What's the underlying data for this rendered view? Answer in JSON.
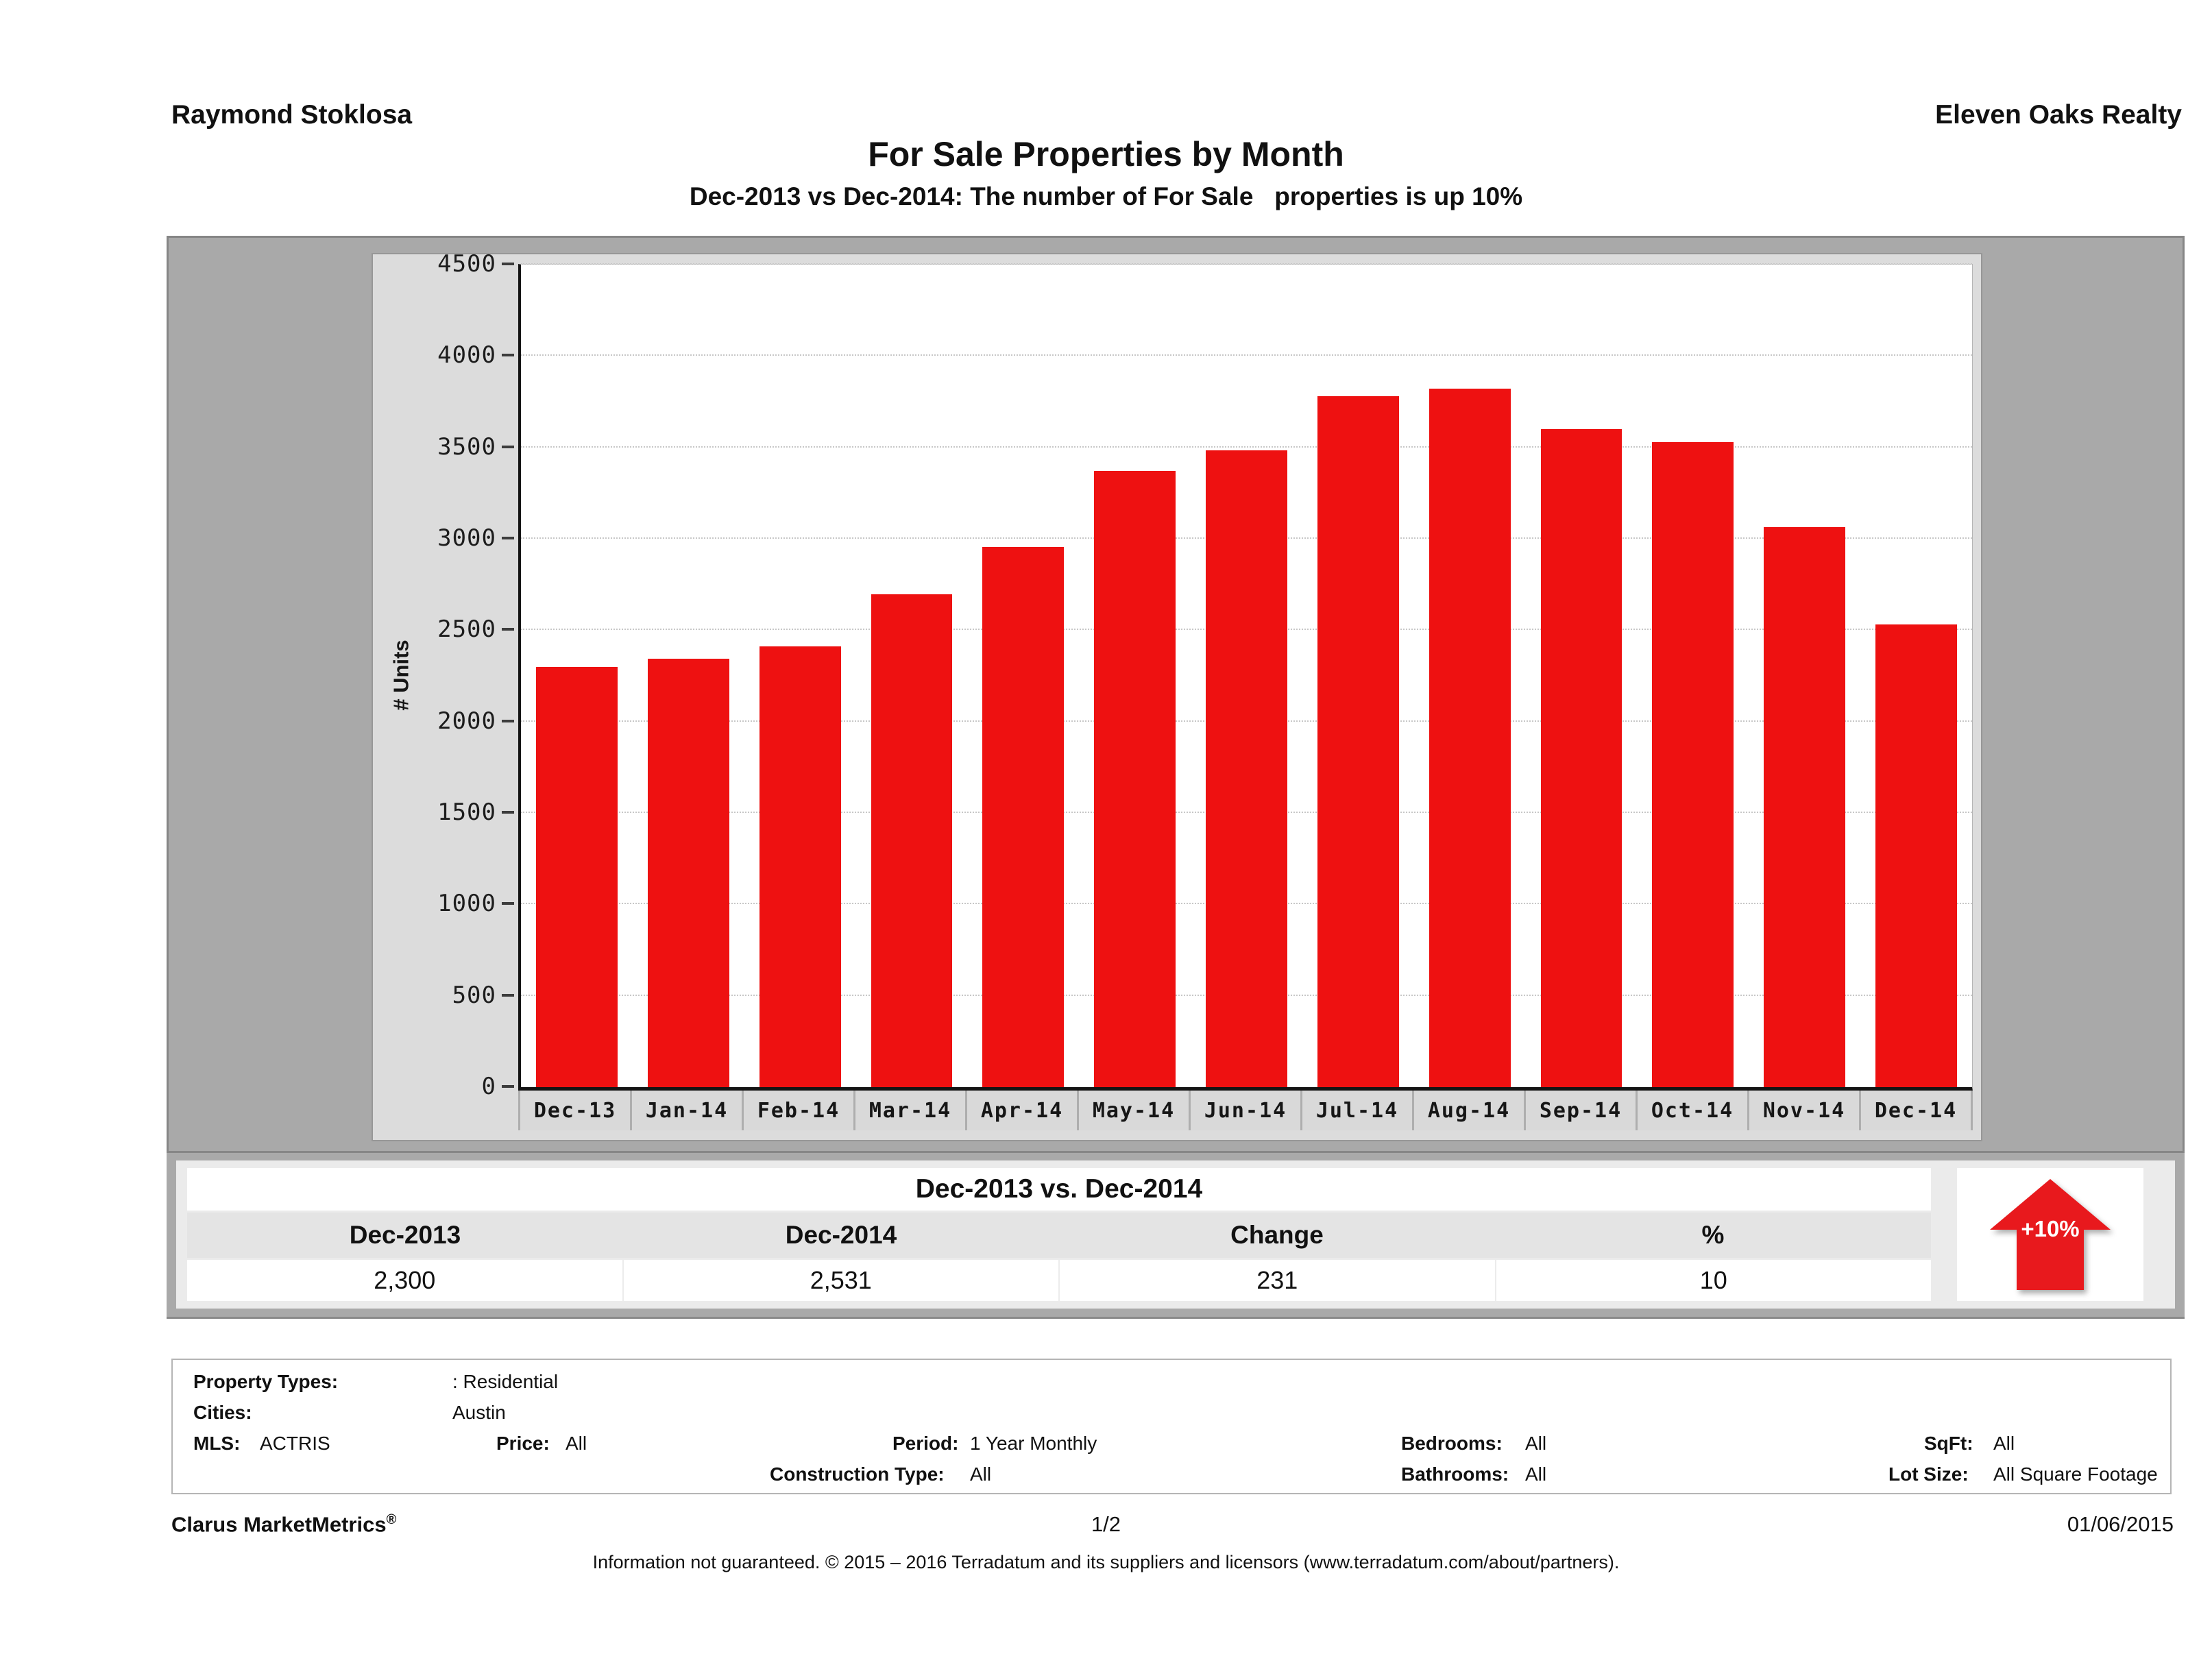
{
  "header": {
    "agent": "Raymond Stoklosa",
    "company": "Eleven Oaks Realty"
  },
  "title": "For Sale Properties by Month",
  "subtitle": "Dec-2013 vs Dec-2014: The number of For Sale   properties is up 10%",
  "chart_data": {
    "type": "bar",
    "title": "For Sale Properties by Month",
    "xlabel": "",
    "ylabel": "# Units",
    "categories": [
      "Dec-13",
      "Jan-14",
      "Feb-14",
      "Mar-14",
      "Apr-14",
      "May-14",
      "Jun-14",
      "Jul-14",
      "Aug-14",
      "Sep-14",
      "Oct-14",
      "Nov-14",
      "Dec-14"
    ],
    "values": [
      2300,
      2345,
      2410,
      2695,
      2955,
      3370,
      3485,
      3780,
      3820,
      3600,
      3530,
      3065,
      2531
    ],
    "ylim": [
      0,
      4500
    ],
    "ytick_interval": 500,
    "grid": true,
    "legend": false,
    "bar_color": "#ee1111"
  },
  "comparison_table": {
    "title": "Dec-2013 vs. Dec-2014",
    "columns": [
      "Dec-2013",
      "Dec-2014",
      "Change",
      "%"
    ],
    "values": [
      "2,300",
      "2,531",
      "231",
      "10"
    ],
    "badge": "+10%",
    "badge_color": "#e8191d"
  },
  "criteria": {
    "property_types_label": "Property Types:",
    "property_types_value": ": Residential",
    "cities_label": "Cities:",
    "cities_value": "Austin",
    "mls_label": "MLS:",
    "mls_value": "ACTRIS",
    "price_label": "Price:",
    "price_value": "All",
    "period_label": "Period:",
    "period_value": "1 Year Monthly",
    "bedrooms_label": "Bedrooms:",
    "bedrooms_value": "All",
    "sqft_label": "SqFt:",
    "sqft_value": "All",
    "construction_label": "Construction Type:",
    "construction_value": "All",
    "bathrooms_label": "Bathrooms:",
    "bathrooms_value": "All",
    "lot_size_label": "Lot Size:",
    "lot_size_value": "All Square Footage"
  },
  "footer": {
    "brand": "Clarus MarketMetrics",
    "brand_mark": "®",
    "page": "1/2",
    "date": "01/06/2015",
    "disclaimer": "Information not guaranteed. © 2015 – 2016 Terradatum and its suppliers and licensors (www.terradatum.com/about/partners)."
  }
}
